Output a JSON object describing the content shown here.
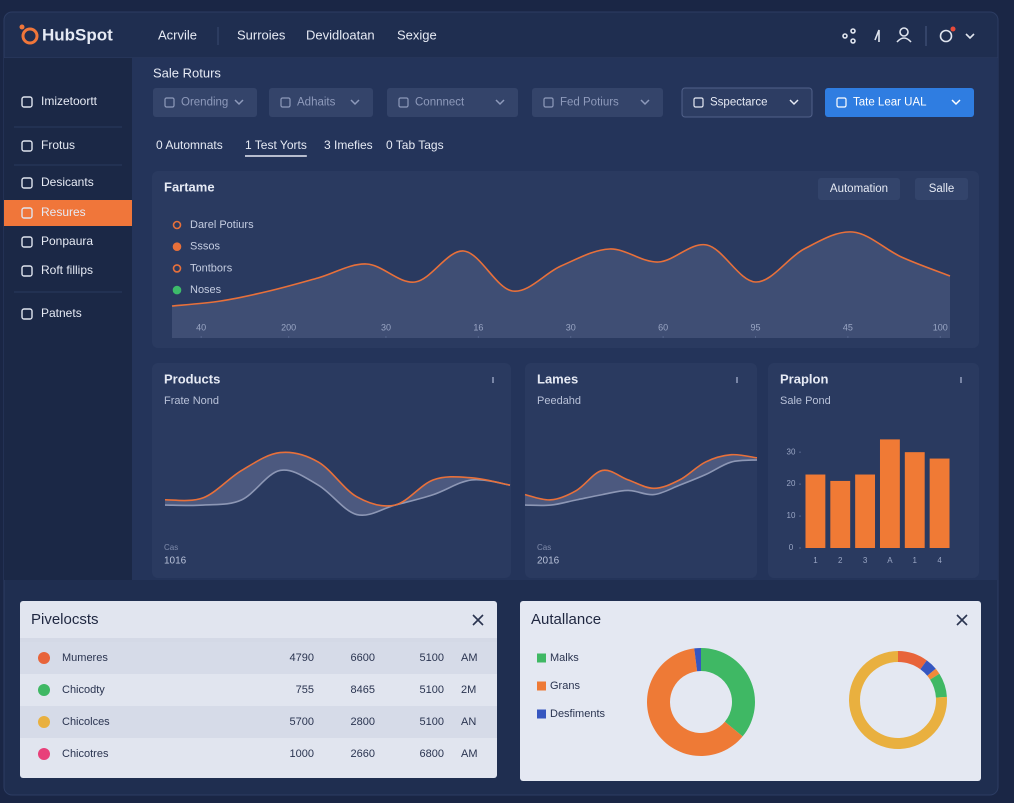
{
  "header": {
    "brand": "HubSpot",
    "nav": [
      "Acrvile",
      "Surroies",
      "Devidloatan",
      "Sexige"
    ]
  },
  "sidebar": {
    "items": [
      {
        "label": "Imizetoortt"
      },
      {
        "label": "Frotus"
      },
      {
        "label": "Desicants"
      },
      {
        "label": "Resures",
        "active": true
      },
      {
        "label": "Ponpaura"
      },
      {
        "label": "Roft fillips"
      },
      {
        "label": "Patnets"
      }
    ]
  },
  "section_title": "Sale Roturs",
  "filters": [
    {
      "label": "Orending",
      "style": "muted"
    },
    {
      "label": "Adhaits",
      "style": "muted"
    },
    {
      "label": "Connnect",
      "style": "muted"
    },
    {
      "label": "Fed Potiurs",
      "style": "muted"
    },
    {
      "label": "Sspectarce",
      "style": "outlined"
    },
    {
      "label": "Tate Lear UAL",
      "style": "primary"
    }
  ],
  "tabs": [
    {
      "label": "0 Automnats"
    },
    {
      "label": "1 Test Yorts",
      "active": true
    },
    {
      "label": "3 Imefies"
    },
    {
      "label": "0 Tab Tags"
    }
  ],
  "chart_data": [
    {
      "type": "line",
      "title": "Fartame",
      "buttons": [
        "Automation",
        "Salle"
      ],
      "legend": [
        {
          "name": "Darel Potiurs",
          "color": "#e8703a",
          "style": "ring"
        },
        {
          "name": "Sssos",
          "color": "#e8703a",
          "style": "dot"
        },
        {
          "name": "Tontbors",
          "color": "#e8703a",
          "style": "ring"
        },
        {
          "name": "Noses",
          "color": "#3dbb6a",
          "style": "dot"
        }
      ],
      "x": [
        0,
        1,
        2,
        3,
        4,
        5,
        6,
        7,
        8,
        9,
        10,
        11,
        12,
        13,
        14,
        15,
        16
      ],
      "values": [
        14,
        19,
        29,
        42,
        56,
        38,
        69,
        29,
        54,
        71,
        58,
        75,
        38,
        71,
        88,
        63,
        44
      ],
      "color": "#e8703a",
      "area": true,
      "xlim": [
        0,
        16
      ],
      "ylim": [
        0,
        100
      ],
      "xticks": [
        {
          "value": 0.6,
          "label": "40"
        },
        {
          "value": 2.4,
          "label": "200"
        },
        {
          "value": 4.4,
          "label": "30"
        },
        {
          "value": 6.3,
          "label": "16"
        },
        {
          "value": 8.2,
          "label": "30"
        },
        {
          "value": 10.1,
          "label": "60"
        },
        {
          "value": 12,
          "label": "95"
        },
        {
          "value": 13.9,
          "label": "45"
        },
        {
          "value": 15.8,
          "label": "100"
        }
      ]
    },
    {
      "type": "line",
      "title": "Products",
      "subtitle": "Frate Nond",
      "xlabel": "Cas",
      "annotation": "1016",
      "fill_between": true,
      "ylim": [
        0,
        100
      ],
      "series": [
        {
          "color": "#e8703a",
          "values": [
            43,
            45,
            71,
            88,
            79,
            46,
            38,
            62,
            64,
            57
          ]
        },
        {
          "color": "#8d97b5",
          "values": [
            38,
            38,
            43,
            71,
            57,
            29,
            38,
            48,
            62,
            57
          ]
        }
      ]
    },
    {
      "type": "line",
      "title": "Lames",
      "subtitle": "Peedahd",
      "xlabel": "Cas",
      "annotation": "2016",
      "fill_between": true,
      "ylim": [
        0,
        100
      ],
      "series": [
        {
          "color": "#e8703a",
          "values": [
            48,
            43,
            52,
            71,
            62,
            54,
            62,
            79,
            86,
            83
          ]
        },
        {
          "color": "#8d97b5",
          "values": [
            38,
            38,
            43,
            48,
            52,
            48,
            57,
            67,
            79,
            81
          ]
        }
      ]
    },
    {
      "type": "bar",
      "title": "Praplon",
      "subtitle": "Sale Pond",
      "categories": [
        "1",
        "2",
        "3",
        "A",
        "1",
        "4"
      ],
      "values": [
        23,
        21,
        23,
        34,
        30,
        28
      ],
      "color": "#f07a35",
      "ylim": [
        0,
        36
      ],
      "yticks": [
        0,
        10,
        20,
        30
      ]
    },
    {
      "type": "pie",
      "title": "Autallance",
      "donut": true,
      "categories": [
        "Malks",
        "Grans",
        "Desfiments"
      ],
      "values": [
        36,
        62,
        2
      ],
      "colors": [
        "#3fb864",
        "#ee7a36",
        "#3656c0"
      ]
    },
    {
      "type": "pie",
      "donut": true,
      "values": [
        10,
        4,
        2,
        8,
        76
      ],
      "colors": [
        "#e8643a",
        "#3656c0",
        "#f08a3a",
        "#3fb864",
        "#e9b03f"
      ]
    }
  ],
  "table": {
    "title": "Pivelocsts",
    "rows": [
      {
        "color": "#e8643a",
        "cells": [
          "Mumeres",
          "4790",
          "6600",
          "5100",
          "AM"
        ]
      },
      {
        "color": "#3fb864",
        "cells": [
          "Chicodty",
          "755",
          "8465",
          "5100",
          "2M"
        ]
      },
      {
        "color": "#e9b03f",
        "cells": [
          "Chicolces",
          "5700",
          "2800",
          "5100",
          "AN"
        ]
      },
      {
        "color": "#e8407a",
        "cells": [
          "Chicotres",
          "1000",
          "2660",
          "6800",
          "AM"
        ]
      }
    ]
  }
}
